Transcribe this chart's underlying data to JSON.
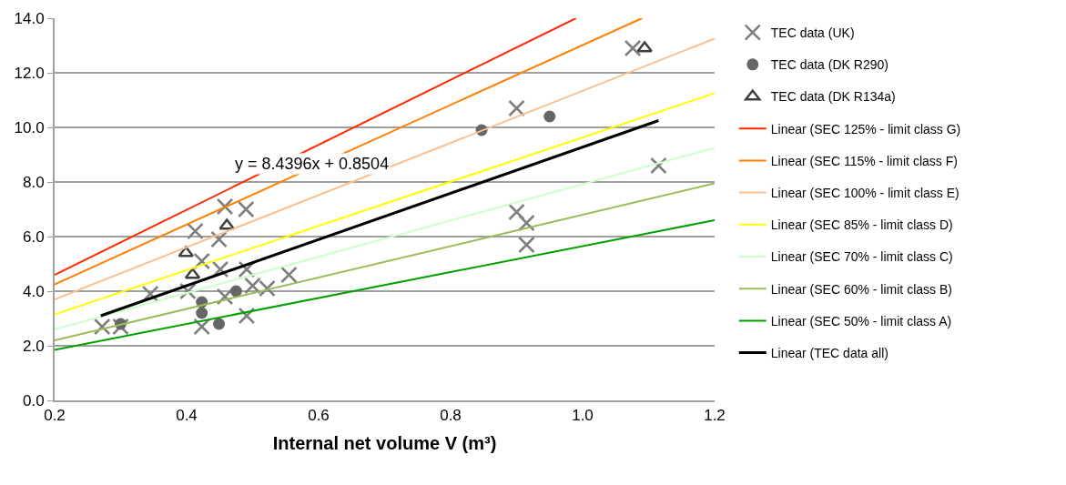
{
  "chart_data": {
    "type": "scatter",
    "xlabel": "Internal net volume V (m³)",
    "xlim": [
      0.2,
      1.2
    ],
    "ylim": [
      0,
      14
    ],
    "xticks": [
      0.2,
      0.4,
      0.6,
      0.8,
      {
        "value": 1.0,
        "label": "1.0"
      },
      1.2
    ],
    "yticks": [
      {
        "value": 0,
        "label": "0.0"
      },
      {
        "value": 2,
        "label": "2.0"
      },
      {
        "value": 4,
        "label": "4.0"
      },
      {
        "value": 6,
        "label": "6.0"
      },
      {
        "value": 8,
        "label": "8.0"
      },
      {
        "value": 10,
        "label": "10.0"
      },
      {
        "value": 12,
        "label": "12.0"
      },
      {
        "value": 14,
        "label": "14.0"
      }
    ],
    "grid": "y",
    "legend": "right",
    "annotations": [
      "y = 8.4396x + 0.8504"
    ],
    "series": [
      {
        "name": "TEC data (UK)",
        "marker": "cross",
        "color": "#7f7f7f",
        "x": [
          0.272,
          0.3,
          0.345,
          0.458,
          0.49,
          0.413,
          0.449,
          0.423,
          0.451,
          0.491,
          0.522,
          0.555,
          0.5,
          0.458,
          0.491,
          0.423,
          0.402,
          0.9,
          0.915,
          0.915,
          1.076,
          0.9,
          1.115
        ],
        "values": [
          2.7,
          2.7,
          3.9,
          7.1,
          7.0,
          6.2,
          5.9,
          5.1,
          4.8,
          4.8,
          4.1,
          4.6,
          4.2,
          3.8,
          3.1,
          2.7,
          4.0,
          6.9,
          6.5,
          5.7,
          12.9,
          10.7,
          8.6
        ]
      },
      {
        "name": "TEC data (DK R290)",
        "marker": "circle",
        "color": "#666666",
        "x": [
          0.3,
          0.423,
          0.423,
          0.449,
          0.475,
          0.847,
          0.95
        ],
        "values": [
          2.8,
          3.6,
          3.2,
          2.8,
          4.0,
          9.9,
          10.4
        ]
      },
      {
        "name": "TEC data (DK R134a)",
        "marker": "triangle",
        "color": "#404040",
        "x": [
          0.399,
          0.409,
          0.461,
          1.094
        ],
        "values": [
          5.4,
          4.6,
          6.4,
          12.9
        ]
      },
      {
        "name": "Linear (SEC 125% - limit class G)",
        "type": "line",
        "color": "#ff2a00",
        "x": [
          0.2,
          0.99
        ],
        "values": [
          4.6,
          14.0
        ]
      },
      {
        "name": "Linear (SEC 115% - limit class F)",
        "type": "line",
        "color": "#ff7f00",
        "x": [
          0.2,
          1.09
        ],
        "values": [
          4.25,
          14.0
        ]
      },
      {
        "name": "Linear (SEC 100% - limit class E)",
        "type": "line",
        "color": "#fac090",
        "x": [
          0.2,
          1.2
        ],
        "values": [
          3.7,
          13.25
        ]
      },
      {
        "name": "Linear (SEC 85% - limit class D)",
        "type": "line",
        "color": "#ffff00",
        "x": [
          0.2,
          1.2
        ],
        "values": [
          3.15,
          11.25
        ]
      },
      {
        "name": "Linear (SEC 70% - limit class C)",
        "type": "line",
        "color": "#ccffcc",
        "x": [
          0.2,
          1.2
        ],
        "values": [
          2.6,
          9.25
        ]
      },
      {
        "name": "Linear (SEC 60% - limit class B)",
        "type": "line",
        "color": "#9bbb59",
        "x": [
          0.2,
          1.2
        ],
        "values": [
          2.2,
          7.95
        ]
      },
      {
        "name": "Linear (SEC 50% - limit class A)",
        "type": "line",
        "color": "#00a000",
        "x": [
          0.2,
          1.2
        ],
        "values": [
          1.85,
          6.6
        ]
      },
      {
        "name": "Linear (TEC data all)",
        "type": "line",
        "color": "#000000",
        "x": [
          0.27,
          1.115
        ],
        "values": [
          3.1,
          10.25
        ]
      }
    ]
  }
}
